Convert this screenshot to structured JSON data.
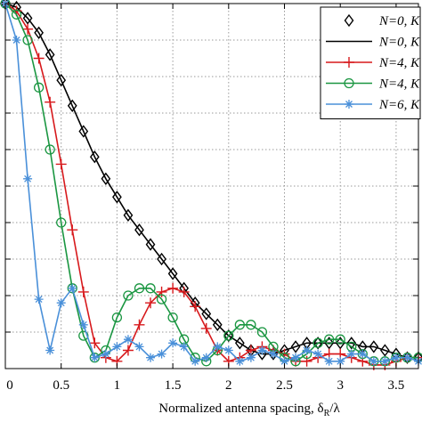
{
  "chart_data": {
    "type": "line",
    "title": "",
    "xlabel": "Normalized antenna spacing, δ",
    "xlabel_sub": "R",
    "xlabel_tail": "/λ",
    "ylabel": "",
    "xlim": [
      0,
      3.7
    ],
    "ylim": [
      0,
      1
    ],
    "xticks": [
      0,
      0.5,
      1,
      1.5,
      2,
      2.5,
      3,
      3.5
    ],
    "xtick_labels": [
      "0",
      "0.5",
      "1",
      "1.5",
      "2",
      "2.5",
      "3",
      "3.5"
    ],
    "yticks": [
      0,
      0.1,
      0.2,
      0.3,
      0.4,
      0.5,
      0.6,
      0.7,
      0.8,
      0.9,
      1.0
    ],
    "grid": true,
    "grid_style": "dotted",
    "legend_position": "top-right",
    "series": [
      {
        "name": "N=0, K",
        "color": "#000000",
        "style": "markers",
        "marker": "diamond",
        "x": [
          0,
          0.1,
          0.2,
          0.3,
          0.4,
          0.5,
          0.6,
          0.7,
          0.8,
          0.9,
          1.0,
          1.1,
          1.2,
          1.3,
          1.4,
          1.5,
          1.6,
          1.7,
          1.8,
          1.9,
          2.0,
          2.1,
          2.2,
          2.3,
          2.4,
          2.5,
          2.6,
          2.7,
          2.8,
          2.9,
          3.0,
          3.1,
          3.2,
          3.3,
          3.4,
          3.5,
          3.6,
          3.7
        ],
        "y": [
          1.0,
          0.99,
          0.96,
          0.92,
          0.86,
          0.79,
          0.72,
          0.65,
          0.58,
          0.52,
          0.47,
          0.42,
          0.38,
          0.34,
          0.3,
          0.26,
          0.22,
          0.18,
          0.15,
          0.12,
          0.09,
          0.07,
          0.05,
          0.04,
          0.04,
          0.05,
          0.06,
          0.07,
          0.07,
          0.07,
          0.07,
          0.07,
          0.06,
          0.06,
          0.05,
          0.04,
          0.03,
          0.03
        ]
      },
      {
        "name": "N=0, K",
        "color": "#000000",
        "style": "line",
        "x": [
          0,
          0.1,
          0.2,
          0.3,
          0.4,
          0.5,
          0.6,
          0.7,
          0.8,
          0.9,
          1.0,
          1.1,
          1.2,
          1.3,
          1.4,
          1.5,
          1.6,
          1.7,
          1.8,
          1.9,
          2.0,
          2.1,
          2.2,
          2.3,
          2.4,
          2.5,
          2.6,
          2.7,
          2.8,
          2.9,
          3.0,
          3.1,
          3.2,
          3.3,
          3.4,
          3.5,
          3.6,
          3.7
        ],
        "y": [
          1.0,
          0.99,
          0.96,
          0.92,
          0.86,
          0.79,
          0.72,
          0.65,
          0.58,
          0.52,
          0.47,
          0.42,
          0.38,
          0.34,
          0.3,
          0.26,
          0.22,
          0.18,
          0.15,
          0.12,
          0.09,
          0.07,
          0.05,
          0.04,
          0.04,
          0.05,
          0.06,
          0.07,
          0.07,
          0.07,
          0.07,
          0.07,
          0.06,
          0.06,
          0.05,
          0.04,
          0.03,
          0.03
        ]
      },
      {
        "name": "N=4, K",
        "color": "#d7191c",
        "style": "line-markers",
        "marker": "plus",
        "x": [
          0,
          0.1,
          0.2,
          0.3,
          0.4,
          0.5,
          0.6,
          0.7,
          0.8,
          0.9,
          1.0,
          1.1,
          1.2,
          1.3,
          1.4,
          1.5,
          1.6,
          1.7,
          1.8,
          1.9,
          2.0,
          2.1,
          2.2,
          2.3,
          2.4,
          2.5,
          2.6,
          2.7,
          2.8,
          2.9,
          3.0,
          3.1,
          3.2,
          3.3,
          3.4,
          3.5,
          3.6,
          3.7
        ],
        "y": [
          1.0,
          0.98,
          0.93,
          0.85,
          0.73,
          0.56,
          0.38,
          0.21,
          0.07,
          0.03,
          0.02,
          0.05,
          0.12,
          0.18,
          0.21,
          0.22,
          0.21,
          0.17,
          0.11,
          0.05,
          0.02,
          0.03,
          0.05,
          0.06,
          0.05,
          0.04,
          0.02,
          0.02,
          0.03,
          0.04,
          0.04,
          0.03,
          0.02,
          0.01,
          0.01,
          0.02,
          0.03,
          0.03
        ]
      },
      {
        "name": "N=4, K",
        "color": "#1a9641",
        "style": "line-markers",
        "marker": "circle",
        "x": [
          0,
          0.1,
          0.2,
          0.3,
          0.4,
          0.5,
          0.6,
          0.7,
          0.8,
          0.9,
          1.0,
          1.1,
          1.2,
          1.3,
          1.4,
          1.5,
          1.6,
          1.7,
          1.8,
          1.9,
          2.0,
          2.1,
          2.2,
          2.3,
          2.4,
          2.5,
          2.6,
          2.7,
          2.8,
          2.9,
          3.0,
          3.1,
          3.2,
          3.3,
          3.4,
          3.5,
          3.6,
          3.7
        ],
        "y": [
          1.0,
          0.97,
          0.9,
          0.77,
          0.6,
          0.4,
          0.22,
          0.09,
          0.03,
          0.05,
          0.14,
          0.2,
          0.22,
          0.22,
          0.19,
          0.14,
          0.08,
          0.03,
          0.02,
          0.05,
          0.09,
          0.12,
          0.12,
          0.1,
          0.06,
          0.03,
          0.02,
          0.04,
          0.07,
          0.08,
          0.08,
          0.06,
          0.04,
          0.02,
          0.02,
          0.03,
          0.03,
          0.03
        ]
      },
      {
        "name": "N=6, K",
        "color": "#4a90d9",
        "style": "line-markers",
        "marker": "asterisk",
        "x": [
          0,
          0.1,
          0.2,
          0.3,
          0.4,
          0.5,
          0.6,
          0.7,
          0.8,
          0.9,
          1.0,
          1.1,
          1.2,
          1.3,
          1.4,
          1.5,
          1.6,
          1.7,
          1.8,
          1.9,
          2.0,
          2.1,
          2.2,
          2.3,
          2.4,
          2.5,
          2.6,
          2.7,
          2.8,
          2.9,
          3.0,
          3.1,
          3.2,
          3.3,
          3.4,
          3.5,
          3.6,
          3.7
        ],
        "y": [
          1.0,
          0.9,
          0.52,
          0.19,
          0.05,
          0.18,
          0.22,
          0.12,
          0.03,
          0.04,
          0.06,
          0.08,
          0.06,
          0.03,
          0.04,
          0.07,
          0.06,
          0.02,
          0.03,
          0.06,
          0.05,
          0.02,
          0.03,
          0.05,
          0.04,
          0.02,
          0.03,
          0.05,
          0.04,
          0.02,
          0.02,
          0.04,
          0.04,
          0.02,
          0.02,
          0.03,
          0.03,
          0.02
        ]
      }
    ]
  }
}
